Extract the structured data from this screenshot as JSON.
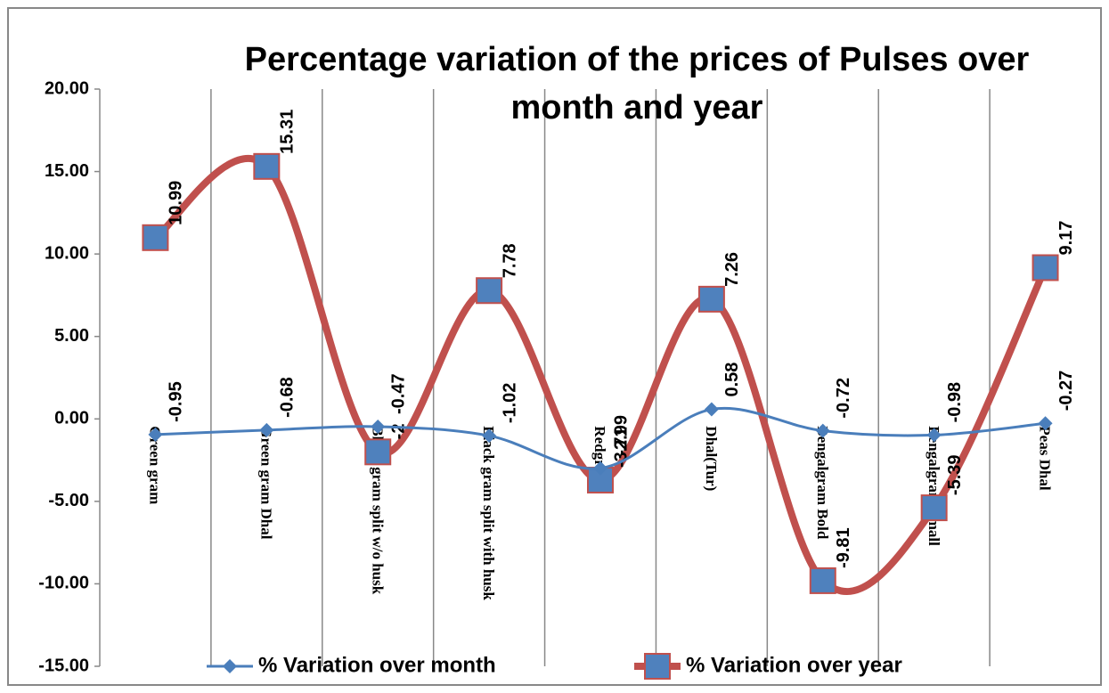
{
  "chart_data": {
    "type": "line",
    "title": "Percentage variation of the prices of Pulses over month and year",
    "categories": [
      "Green gram",
      "Green gram Dhal",
      "Black gram split w/o husk",
      "Black gram split with husk",
      "Redgram",
      "Dhal(Tur)",
      "Bengalgram Bold",
      "Bengalgram Small",
      "Peas Dhal"
    ],
    "series": [
      {
        "name": "% Variation over month",
        "color": "#4a7ebb",
        "marker": "diamond",
        "values": [
          -0.95,
          -0.68,
          -0.47,
          -1.02,
          -2.99,
          0.58,
          -0.72,
          -0.98,
          -0.27
        ]
      },
      {
        "name": "% Variation over year",
        "color": "#c0504d",
        "marker": "square",
        "values": [
          10.99,
          15.31,
          -2.0,
          7.78,
          -3.71,
          7.26,
          -9.81,
          -5.39,
          9.17
        ]
      }
    ],
    "ylim": [
      -15,
      20
    ],
    "yticks": [
      {
        "value": -15,
        "label": "-15.00"
      },
      {
        "value": -10,
        "label": "-10.00"
      },
      {
        "value": -5,
        "label": "-5.00"
      },
      {
        "value": 0,
        "label": "0.00"
      },
      {
        "value": 5,
        "label": "5.00"
      },
      {
        "value": 10,
        "label": "10.00"
      },
      {
        "value": 15,
        "label": "15.00"
      },
      {
        "value": 20,
        "label": "20.00"
      }
    ],
    "grid": "vertical",
    "smooth": true,
    "legend": "bottom"
  }
}
